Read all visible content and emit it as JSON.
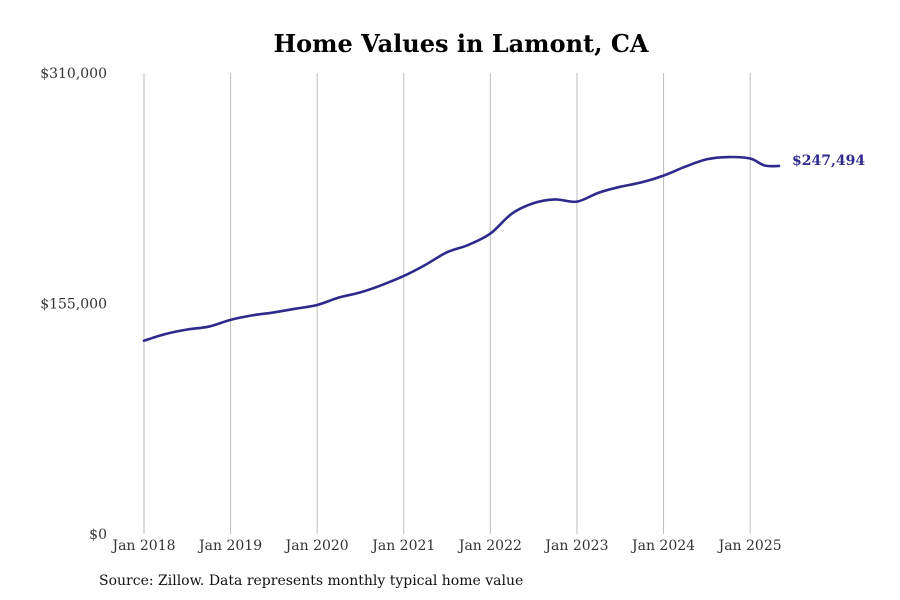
{
  "chart_data": {
    "type": "line",
    "title": "Home Values in Lamont, CA",
    "xlabel": "",
    "ylabel": "",
    "ylim": [
      0,
      310000
    ],
    "y_ticks": [
      0,
      155000,
      310000
    ],
    "y_tick_labels": [
      "$0",
      "$155,000",
      "$310,000"
    ],
    "x_range": [
      "2018-01",
      "2025-05"
    ],
    "x_ticks": [
      "2018-01",
      "2019-01",
      "2020-01",
      "2021-01",
      "2022-01",
      "2023-01",
      "2024-01",
      "2025-01"
    ],
    "x_tick_labels": [
      "Jan 2018",
      "Jan 2019",
      "Jan 2020",
      "Jan 2021",
      "Jan 2022",
      "Jan 2023",
      "Jan 2024",
      "Jan 2025"
    ],
    "grid": "vertical",
    "line_color": "#2e2a8c",
    "end_label": "$247,494",
    "series": [
      {
        "name": "",
        "x": [
          "2018-01",
          "2018-04",
          "2018-07",
          "2018-10",
          "2019-01",
          "2019-04",
          "2019-07",
          "2019-10",
          "2020-01",
          "2020-04",
          "2020-07",
          "2020-10",
          "2021-01",
          "2021-04",
          "2021-07",
          "2021-10",
          "2022-01",
          "2022-04",
          "2022-07",
          "2022-10",
          "2023-01",
          "2023-04",
          "2023-07",
          "2023-10",
          "2024-01",
          "2024-04",
          "2024-07",
          "2024-10",
          "2025-01",
          "2025-03",
          "2025-05"
        ],
        "values": [
          130000,
          134500,
          137500,
          139500,
          144000,
          147000,
          149000,
          151500,
          154000,
          159000,
          162500,
          167500,
          173500,
          181000,
          189500,
          194500,
          202000,
          215500,
          222500,
          225000,
          223500,
          229500,
          233500,
          236500,
          241000,
          247000,
          252000,
          253500,
          252500,
          247800,
          247494
        ]
      }
    ]
  },
  "source": "Source: Zillow. Data represents monthly typical home value"
}
